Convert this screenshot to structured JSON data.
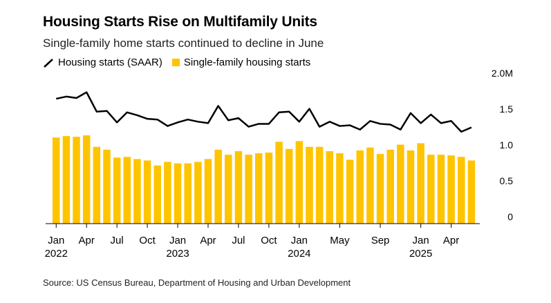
{
  "colors": {
    "line": "#000000",
    "bar": "#FFC400",
    "axis": "#000000"
  },
  "header": {
    "title": "Housing Starts Rise on Multifamily Units",
    "subtitle": "Single-family home starts continued to decline in June"
  },
  "legend": {
    "line_label": "Housing starts (SAAR)",
    "bar_label": "Single-family housing starts"
  },
  "footer": {
    "source": "Source: US Census Bureau, Department of Housing and Urban Development"
  },
  "chart_data": {
    "type": "bar",
    "ylim": [
      0,
      2.0
    ],
    "y_ticks": [
      {
        "value": 0,
        "label": "0"
      },
      {
        "value": 0.5,
        "label": "0.5"
      },
      {
        "value": 1.0,
        "label": "1.0"
      },
      {
        "value": 1.5,
        "label": "1.5"
      },
      {
        "value": 2.0,
        "label": "2.0M"
      }
    ],
    "x_ticks": [
      {
        "index": 0,
        "label": "Jan",
        "year": "2022"
      },
      {
        "index": 3,
        "label": "Apr",
        "year": ""
      },
      {
        "index": 6,
        "label": "Jul",
        "year": ""
      },
      {
        "index": 9,
        "label": "Oct",
        "year": ""
      },
      {
        "index": 12,
        "label": "Jan",
        "year": "2023"
      },
      {
        "index": 15,
        "label": "Apr",
        "year": ""
      },
      {
        "index": 18,
        "label": "Jul",
        "year": ""
      },
      {
        "index": 21,
        "label": "Oct",
        "year": ""
      },
      {
        "index": 24,
        "label": "Jan",
        "year": "2024"
      },
      {
        "index": 28,
        "label": "May",
        "year": ""
      },
      {
        "index": 32,
        "label": "Sep",
        "year": ""
      },
      {
        "index": 36,
        "label": "Jan",
        "year": "2025"
      },
      {
        "index": 39,
        "label": "Apr",
        "year": ""
      }
    ],
    "categories": [
      "2022-01",
      "2022-02",
      "2022-03",
      "2022-04",
      "2022-05",
      "2022-06",
      "2022-07",
      "2022-08",
      "2022-09",
      "2022-10",
      "2022-11",
      "2022-12",
      "2023-01",
      "2023-02",
      "2023-03",
      "2023-04",
      "2023-05",
      "2023-06",
      "2023-07",
      "2023-08",
      "2023-09",
      "2023-10",
      "2023-11",
      "2023-12",
      "2024-01",
      "2024-02",
      "2024-03",
      "2024-04",
      "2024-05",
      "2024-06",
      "2024-07",
      "2024-08",
      "2024-09",
      "2024-10",
      "2024-11",
      "2024-12",
      "2025-01",
      "2025-02",
      "2025-03",
      "2025-04",
      "2025-05",
      "2025-06"
    ],
    "series": [
      {
        "name": "Single-family housing starts",
        "type": "bar",
        "values": [
          1.2,
          1.22,
          1.21,
          1.23,
          1.07,
          1.03,
          0.92,
          0.93,
          0.9,
          0.88,
          0.81,
          0.86,
          0.84,
          0.84,
          0.86,
          0.9,
          1.03,
          0.96,
          1.01,
          0.96,
          0.98,
          0.99,
          1.14,
          1.04,
          1.15,
          1.07,
          1.07,
          1.01,
          0.98,
          0.89,
          1.02,
          1.06,
          0.97,
          1.03,
          1.1,
          1.02,
          1.12,
          0.96,
          0.96,
          0.95,
          0.93,
          0.88
        ]
      },
      {
        "name": "Housing starts (SAAR)",
        "type": "line",
        "values": [
          1.74,
          1.77,
          1.75,
          1.83,
          1.56,
          1.57,
          1.41,
          1.55,
          1.51,
          1.46,
          1.45,
          1.36,
          1.41,
          1.45,
          1.42,
          1.4,
          1.64,
          1.44,
          1.47,
          1.35,
          1.39,
          1.39,
          1.55,
          1.56,
          1.42,
          1.6,
          1.35,
          1.42,
          1.36,
          1.37,
          1.31,
          1.43,
          1.39,
          1.38,
          1.31,
          1.54,
          1.4,
          1.52,
          1.4,
          1.43,
          1.28,
          1.34
        ]
      }
    ]
  }
}
